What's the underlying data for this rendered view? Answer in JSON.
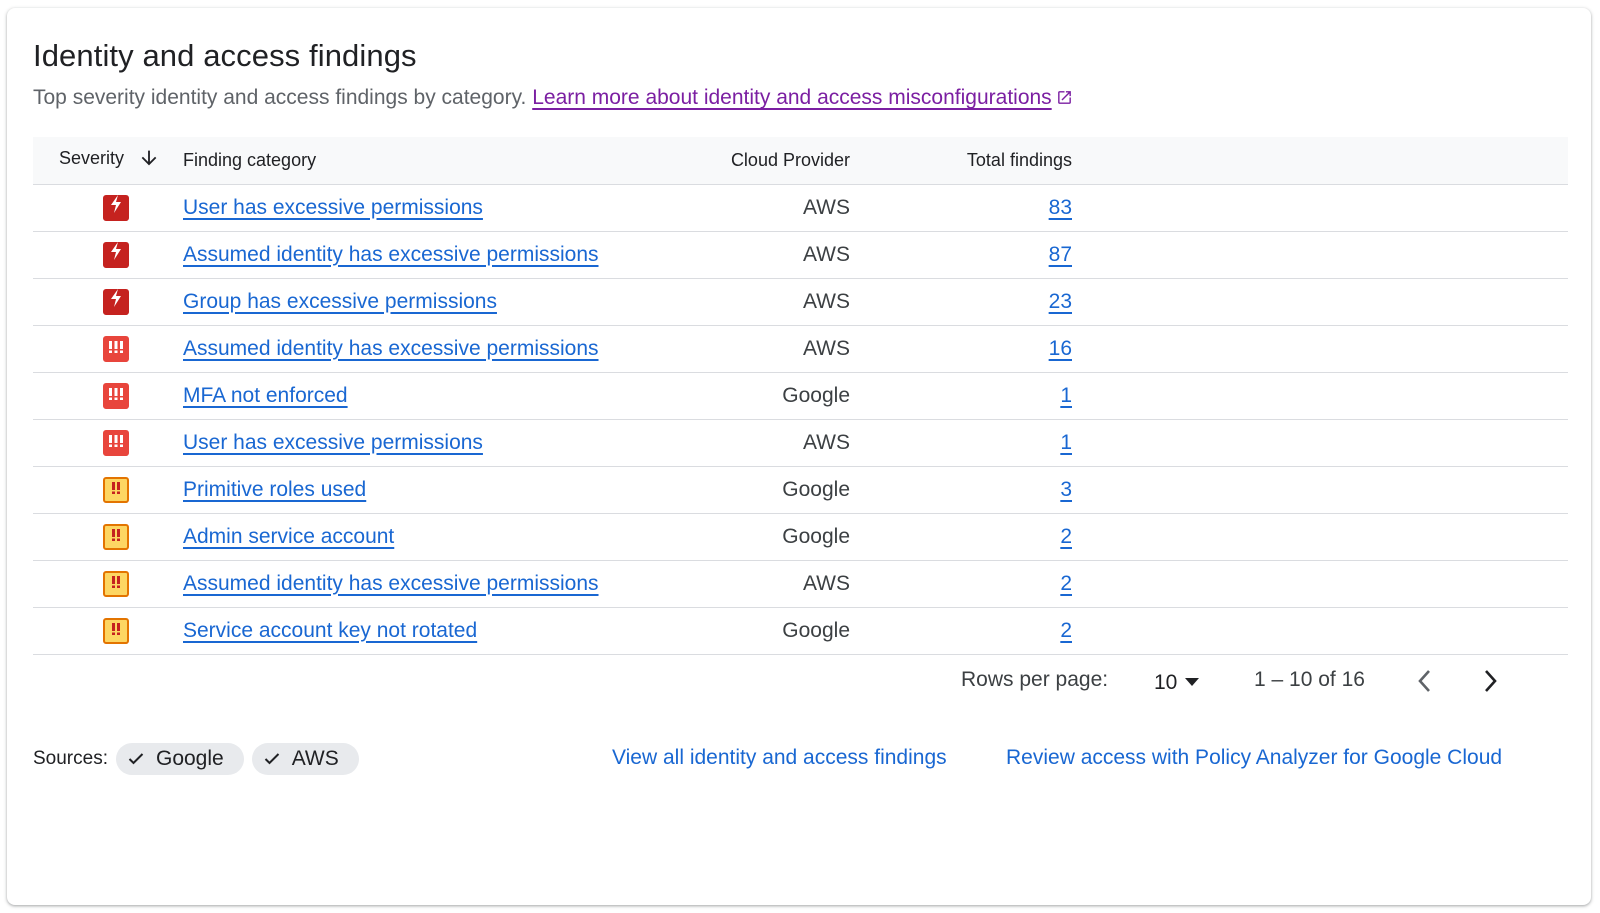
{
  "header": {
    "title": "Identity and access findings",
    "subtitle": "Top severity identity and access findings by category.",
    "learn_more": "Learn more about identity and access misconfigurations"
  },
  "table": {
    "columns": {
      "severity": "Severity",
      "category": "Finding category",
      "provider": "Cloud Provider",
      "total": "Total findings"
    },
    "rows": [
      {
        "severity": "critical",
        "category": "User has excessive permissions",
        "provider": "AWS",
        "total": "83"
      },
      {
        "severity": "critical",
        "category": "Assumed identity has excessive permissions",
        "provider": "AWS",
        "total": "87"
      },
      {
        "severity": "critical",
        "category": "Group has excessive permissions",
        "provider": "AWS",
        "total": "23"
      },
      {
        "severity": "high",
        "category": "Assumed identity has excessive permissions",
        "provider": "AWS",
        "total": "16"
      },
      {
        "severity": "high",
        "category": "MFA not enforced",
        "provider": "Google",
        "total": "1"
      },
      {
        "severity": "high",
        "category": "User has excessive permissions",
        "provider": "AWS",
        "total": "1"
      },
      {
        "severity": "medium",
        "category": "Primitive roles used",
        "provider": "Google",
        "total": "3"
      },
      {
        "severity": "medium",
        "category": "Admin service account",
        "provider": "Google",
        "total": "2"
      },
      {
        "severity": "medium",
        "category": "Assumed identity has excessive permissions",
        "provider": "AWS",
        "total": "2"
      },
      {
        "severity": "medium",
        "category": "Service account key not rotated",
        "provider": "Google",
        "total": "2"
      }
    ]
  },
  "pagination": {
    "rows_per_page_label": "Rows per page:",
    "rows_per_page_value": "10",
    "range": "1 – 10 of 16"
  },
  "sources": {
    "label": "Sources:",
    "chips": [
      "Google",
      "AWS"
    ]
  },
  "footer": {
    "view_all": "View all identity and access findings",
    "policy_analyzer": "Review access with Policy Analyzer for Google Cloud"
  },
  "icons": {
    "critical": "critical-severity-icon",
    "high": "high-severity-icon",
    "medium": "medium-severity-icon"
  },
  "colors": {
    "link": "#1967d2",
    "visited_link": "#7b1fa2",
    "critical": "#c5221f",
    "high": "#e8453c",
    "medium": "#fdd663"
  }
}
